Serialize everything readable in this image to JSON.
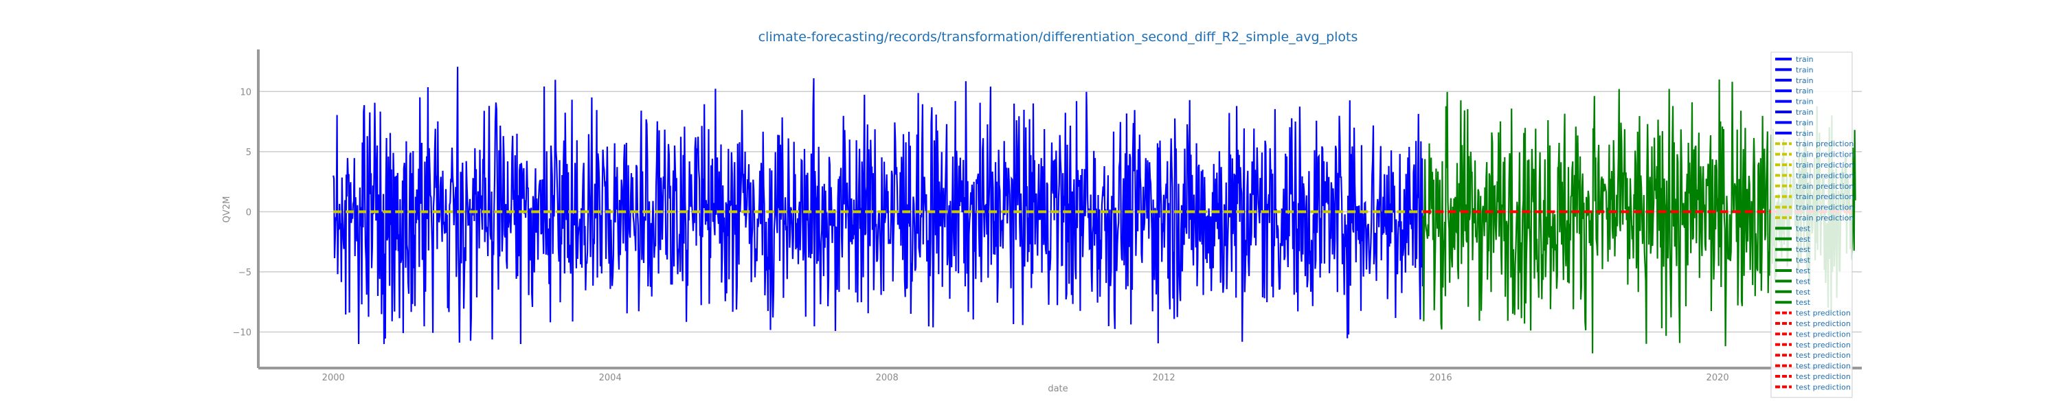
{
  "chart_data": {
    "type": "line",
    "title": "climate-forecasting/records/transformation/differentiation_second_diff_R2_simple_avg_plots",
    "xlabel": "date",
    "ylabel": "QV2M",
    "x_ticks": [
      "2000",
      "2004",
      "2008",
      "2012",
      "2016",
      "2020"
    ],
    "y_ticks": [
      "10",
      "5",
      "0",
      "−5",
      "−10"
    ],
    "y_tick_values": [
      10,
      5,
      0,
      -5,
      -10
    ],
    "xlim": [
      "1998-12-01",
      "2022-01-31"
    ],
    "ylim": [
      -13,
      13.5
    ],
    "grid": true,
    "legend_position": "right",
    "series": [
      {
        "name": "train",
        "color": "#0000ff",
        "style": "solid",
        "x_range": [
          "2000-01-01",
          "2015-09-30"
        ],
        "value_range": [
          -11,
          12.3
        ],
        "typical_amplitude": 5
      },
      {
        "name": "train prediction",
        "color": "#c8c800",
        "style": "dashed",
        "x_range": [
          "2000-01-01",
          "2015-09-30"
        ],
        "value": 0
      },
      {
        "name": "test",
        "color": "#008000",
        "style": "solid",
        "x_range": [
          "2015-09-30",
          "2021-12-31"
        ],
        "value_range": [
          -12,
          11
        ],
        "typical_amplitude": 5
      },
      {
        "name": "test prediction",
        "color": "#ff0000",
        "style": "dashed",
        "x_range": [
          "2015-09-30",
          "2021-12-31"
        ],
        "value": 0
      }
    ],
    "legend_entries": [
      {
        "label": "train",
        "color": "#0000ff",
        "style": "solid"
      },
      {
        "label": "train",
        "color": "#0000ff",
        "style": "solid"
      },
      {
        "label": "train",
        "color": "#0000ff",
        "style": "solid"
      },
      {
        "label": "train",
        "color": "#0000ff",
        "style": "solid"
      },
      {
        "label": "train",
        "color": "#0000ff",
        "style": "solid"
      },
      {
        "label": "train",
        "color": "#0000ff",
        "style": "solid"
      },
      {
        "label": "train",
        "color": "#0000ff",
        "style": "solid"
      },
      {
        "label": "train",
        "color": "#0000ff",
        "style": "solid"
      },
      {
        "label": "train prediction",
        "color": "#c8c800",
        "style": "dashed"
      },
      {
        "label": "train prediction",
        "color": "#c8c800",
        "style": "dashed"
      },
      {
        "label": "train prediction",
        "color": "#c8c800",
        "style": "dashed"
      },
      {
        "label": "train prediction",
        "color": "#c8c800",
        "style": "dashed"
      },
      {
        "label": "train prediction",
        "color": "#c8c800",
        "style": "dashed"
      },
      {
        "label": "train prediction",
        "color": "#c8c800",
        "style": "dashed"
      },
      {
        "label": "train prediction",
        "color": "#c8c800",
        "style": "dashed"
      },
      {
        "label": "train prediction",
        "color": "#c8c800",
        "style": "dashed"
      },
      {
        "label": "test",
        "color": "#008000",
        "style": "solid"
      },
      {
        "label": "test",
        "color": "#008000",
        "style": "solid"
      },
      {
        "label": "test",
        "color": "#008000",
        "style": "solid"
      },
      {
        "label": "test",
        "color": "#008000",
        "style": "solid"
      },
      {
        "label": "test",
        "color": "#008000",
        "style": "solid"
      },
      {
        "label": "test",
        "color": "#008000",
        "style": "solid"
      },
      {
        "label": "test",
        "color": "#008000",
        "style": "solid"
      },
      {
        "label": "test",
        "color": "#008000",
        "style": "solid"
      },
      {
        "label": "test prediction",
        "color": "#ff0000",
        "style": "dashed"
      },
      {
        "label": "test prediction",
        "color": "#ff0000",
        "style": "dashed"
      },
      {
        "label": "test prediction",
        "color": "#ff0000",
        "style": "dashed"
      },
      {
        "label": "test prediction",
        "color": "#ff0000",
        "style": "dashed"
      },
      {
        "label": "test prediction",
        "color": "#ff0000",
        "style": "dashed"
      },
      {
        "label": "test prediction",
        "color": "#ff0000",
        "style": "dashed"
      },
      {
        "label": "test prediction",
        "color": "#ff0000",
        "style": "dashed"
      },
      {
        "label": "test prediction",
        "color": "#ff0000",
        "style": "dashed"
      }
    ]
  }
}
